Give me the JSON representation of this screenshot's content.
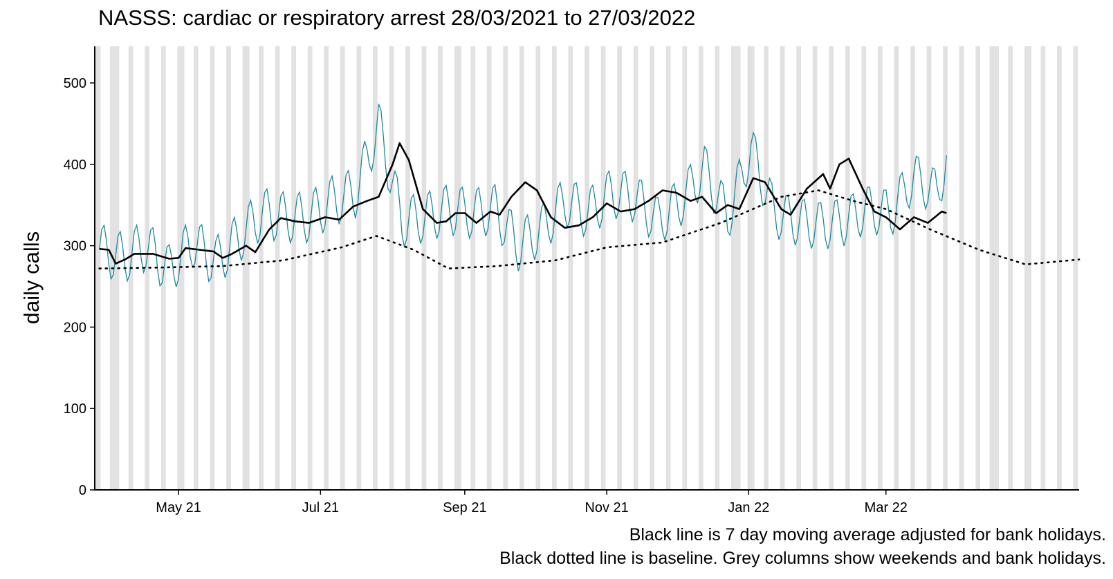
{
  "chart_data": {
    "type": "line",
    "title": "NASSS: cardiac or respiratory arrest 28/03/2021 to 27/03/2022",
    "ylabel": "daily calls",
    "xlabel": "",
    "ylim": [
      0,
      545
    ],
    "yticks": [
      0,
      100,
      200,
      300,
      400,
      500
    ],
    "x_tick_labels": [
      {
        "date": "2021-05-01",
        "label": "May 21"
      },
      {
        "date": "2021-07-01",
        "label": "Jul 21"
      },
      {
        "date": "2021-09-01",
        "label": "Sep 21"
      },
      {
        "date": "2021-11-01",
        "label": "Nov 21"
      },
      {
        "date": "2022-01-01",
        "label": "Jan 22"
      },
      {
        "date": "2022-03-01",
        "label": "Mar 22"
      }
    ],
    "xlim": [
      "2021-03-26",
      "2022-05-23"
    ],
    "grid": false,
    "shaded_days": "weekends and bank holidays",
    "captions": [
      "Black line is 7 day moving average adjusted for bank holidays.",
      "Black dotted line is baseline. Grey columns show weekends and bank holidays."
    ],
    "series": [
      {
        "style": "thin line",
        "color": "#1b8a9e",
        "points": [
          [
            "2021-03-28",
            296
          ],
          [
            "2021-04-07",
            285
          ],
          [
            "2021-04-17",
            300
          ],
          [
            "2021-04-27",
            270
          ],
          [
            "2021-05-07",
            305
          ],
          [
            "2021-05-17",
            280
          ],
          [
            "2021-05-27",
            310
          ],
          [
            "2021-06-06",
            340
          ],
          [
            "2021-06-16",
            335
          ],
          [
            "2021-06-26",
            335
          ],
          [
            "2021-07-06",
            355
          ],
          [
            "2021-07-16",
            365
          ],
          [
            "2021-07-26",
            448
          ],
          [
            "2021-08-05",
            330
          ],
          [
            "2021-08-15",
            335
          ],
          [
            "2021-08-25",
            345
          ],
          [
            "2021-09-04",
            340
          ],
          [
            "2021-09-14",
            345
          ],
          [
            "2021-09-24",
            300
          ],
          [
            "2021-10-04",
            320
          ],
          [
            "2021-10-14",
            355
          ],
          [
            "2021-10-24",
            340
          ],
          [
            "2021-11-03",
            365
          ],
          [
            "2021-11-13",
            360
          ],
          [
            "2021-11-23",
            330
          ],
          [
            "2021-12-03",
            355
          ],
          [
            "2021-12-13",
            395
          ],
          [
            "2021-12-23",
            335
          ],
          [
            "2022-01-02",
            420
          ],
          [
            "2022-01-12",
            340
          ],
          [
            "2022-01-22",
            330
          ],
          [
            "2022-02-01",
            325
          ],
          [
            "2022-02-11",
            330
          ],
          [
            "2022-02-21",
            345
          ],
          [
            "2022-03-03",
            340
          ],
          [
            "2022-03-13",
            385
          ],
          [
            "2022-03-23",
            365
          ],
          [
            "2022-03-27",
            405
          ]
        ]
      },
      {
        "name": "7 day moving average",
        "style": "solid",
        "color": "#000000",
        "points": [
          [
            "2021-03-28",
            296
          ],
          [
            "2021-04-01",
            295
          ],
          [
            "2021-04-04",
            278
          ],
          [
            "2021-04-08",
            283
          ],
          [
            "2021-04-12",
            290
          ],
          [
            "2021-04-20",
            290
          ],
          [
            "2021-04-27",
            284
          ],
          [
            "2021-05-01",
            285
          ],
          [
            "2021-05-04",
            297
          ],
          [
            "2021-05-10",
            295
          ],
          [
            "2021-05-16",
            293
          ],
          [
            "2021-05-20",
            285
          ],
          [
            "2021-05-24",
            290
          ],
          [
            "2021-05-30",
            300
          ],
          [
            "2021-06-03",
            292
          ],
          [
            "2021-06-09",
            320
          ],
          [
            "2021-06-14",
            334
          ],
          [
            "2021-06-20",
            330
          ],
          [
            "2021-06-26",
            328
          ],
          [
            "2021-07-03",
            335
          ],
          [
            "2021-07-09",
            332
          ],
          [
            "2021-07-15",
            348
          ],
          [
            "2021-07-21",
            355
          ],
          [
            "2021-07-26",
            360
          ],
          [
            "2021-08-01",
            400
          ],
          [
            "2021-08-04",
            426
          ],
          [
            "2021-08-08",
            405
          ],
          [
            "2021-08-14",
            345
          ],
          [
            "2021-08-20",
            328
          ],
          [
            "2021-08-24",
            330
          ],
          [
            "2021-08-28",
            340
          ],
          [
            "2021-09-01",
            340
          ],
          [
            "2021-09-06",
            328
          ],
          [
            "2021-09-12",
            342
          ],
          [
            "2021-09-16",
            338
          ],
          [
            "2021-09-21",
            360
          ],
          [
            "2021-09-27",
            378
          ],
          [
            "2021-10-02",
            368
          ],
          [
            "2021-10-08",
            335
          ],
          [
            "2021-10-14",
            322
          ],
          [
            "2021-10-20",
            325
          ],
          [
            "2021-10-26",
            335
          ],
          [
            "2021-11-01",
            352
          ],
          [
            "2021-11-07",
            342
          ],
          [
            "2021-11-13",
            345
          ],
          [
            "2021-11-19",
            355
          ],
          [
            "2021-11-25",
            368
          ],
          [
            "2021-12-01",
            365
          ],
          [
            "2021-12-07",
            355
          ],
          [
            "2021-12-12",
            360
          ],
          [
            "2021-12-18",
            340
          ],
          [
            "2021-12-23",
            350
          ],
          [
            "2021-12-28",
            345
          ],
          [
            "2022-01-03",
            383
          ],
          [
            "2022-01-08",
            378
          ],
          [
            "2022-01-15",
            345
          ],
          [
            "2022-01-19",
            338
          ],
          [
            "2022-01-26",
            370
          ],
          [
            "2022-02-02",
            388
          ],
          [
            "2022-02-05",
            370
          ],
          [
            "2022-02-09",
            400
          ],
          [
            "2022-02-13",
            407
          ],
          [
            "2022-02-19",
            370
          ],
          [
            "2022-02-24",
            342
          ],
          [
            "2022-03-01",
            335
          ],
          [
            "2022-03-07",
            320
          ],
          [
            "2022-03-13",
            335
          ],
          [
            "2022-03-19",
            328
          ],
          [
            "2022-03-25",
            342
          ],
          [
            "2022-03-27",
            340
          ]
        ]
      },
      {
        "name": "baseline",
        "style": "dotted",
        "color": "#000000",
        "points": [
          [
            "2021-03-28",
            272
          ],
          [
            "2021-04-20",
            273
          ],
          [
            "2021-05-20",
            275
          ],
          [
            "2021-06-15",
            282
          ],
          [
            "2021-07-10",
            298
          ],
          [
            "2021-07-25",
            312
          ],
          [
            "2021-08-10",
            295
          ],
          [
            "2021-08-25",
            272
          ],
          [
            "2021-09-15",
            275
          ],
          [
            "2021-10-10",
            282
          ],
          [
            "2021-11-01",
            298
          ],
          [
            "2021-11-25",
            304
          ],
          [
            "2021-12-20",
            328
          ],
          [
            "2022-01-15",
            360
          ],
          [
            "2022-01-31",
            368
          ],
          [
            "2022-02-15",
            355
          ],
          [
            "2022-03-01",
            345
          ],
          [
            "2022-03-20",
            320
          ],
          [
            "2022-04-10",
            295
          ],
          [
            "2022-04-30",
            277
          ],
          [
            "2022-05-23",
            283
          ]
        ]
      }
    ]
  }
}
